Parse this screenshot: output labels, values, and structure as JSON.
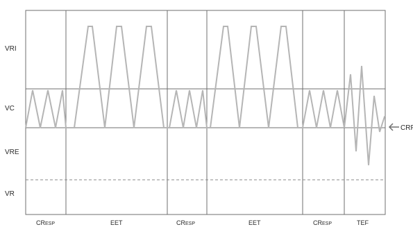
{
  "row_labels": {
    "vri": "VRI",
    "vc": "VC",
    "vre": "VRE",
    "vr": "VR"
  },
  "phase_labels": {
    "cresp_1": {
      "main": "CR",
      "small": "ESP"
    },
    "eet_1": "EET",
    "cresp_2": {
      "main": "CR",
      "small": "ESP"
    },
    "eet_2": "EET",
    "cresp_3": {
      "main": "CR",
      "small": "ESP"
    },
    "tef": "TEF"
  },
  "marker": {
    "arrow_label": "CRF"
  },
  "colors": {
    "frame": "#6f6f6f",
    "waveform": "#b5b5b5",
    "threshold_line": "#6f6f6f",
    "dashed_line": "#8a8a8a",
    "text": "#2a2a2a"
  },
  "icons": {
    "arrow": "arrow-left-icon"
  }
}
